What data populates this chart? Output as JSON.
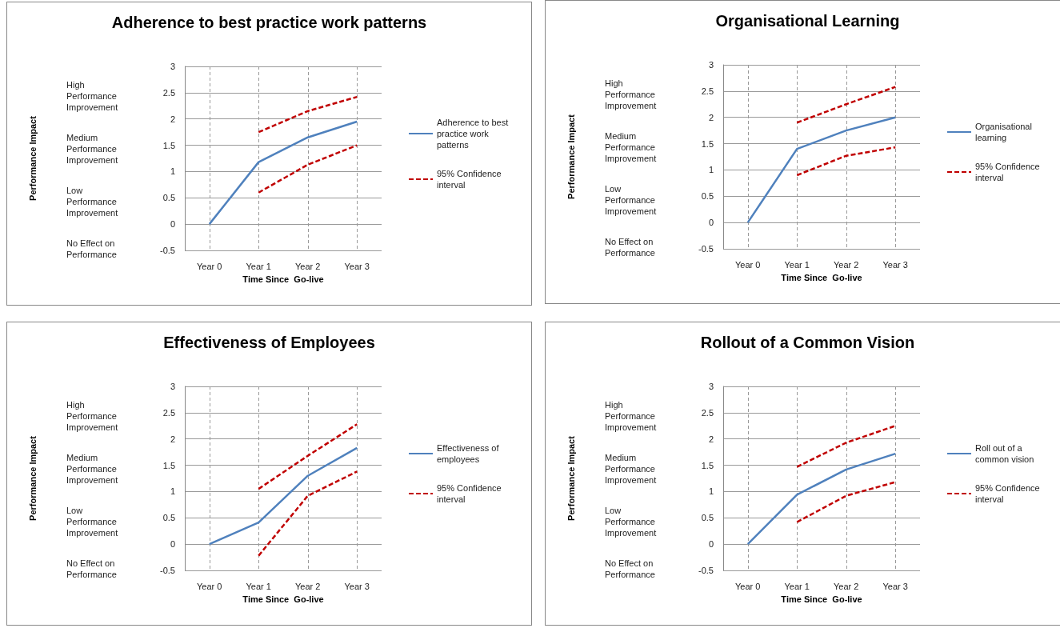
{
  "chart_data": [
    {
      "type": "line",
      "title": "Adherence to best practice work patterns",
      "xlabel": "Time Since  Go-live",
      "ylabel": "Performance Impact",
      "categories": [
        "Year 0",
        "Year 1",
        "Year 2",
        "Year 3"
      ],
      "series": [
        {
          "name": "Adherence to best practice work patterns",
          "color": "#4f81bd",
          "line_style": "solid",
          "values": [
            0,
            1.18,
            1.65,
            1.95
          ]
        },
        {
          "name": "95% Confidence interval",
          "color": "#c00000",
          "line_style": "dashed",
          "values": [
            null,
            1.75,
            2.15,
            2.42
          ]
        },
        {
          "color": "#c00000",
          "line_style": "dashed",
          "values": [
            null,
            0.6,
            1.13,
            1.5
          ]
        }
      ],
      "ylim": [
        -0.5,
        3
      ],
      "yticks": [
        -0.5,
        0,
        0.5,
        1,
        1.5,
        2,
        2.5,
        3
      ],
      "grid": true,
      "legend": "right",
      "marker": "none",
      "annotations": [
        "High Performance Improvement",
        "Medium Performance Improvement",
        "Low Performance Improvement",
        "No Effect on Performance"
      ]
    },
    {
      "type": "line",
      "title": "Organisational Learning",
      "xlabel": "Time Since  Go-live",
      "ylabel": "Performance Impact",
      "categories": [
        "Year 0",
        "Year 1",
        "Year 2",
        "Year 3"
      ],
      "series": [
        {
          "name": "Organisational learning",
          "color": "#4f81bd",
          "line_style": "solid",
          "values": [
            0,
            1.4,
            1.75,
            2.0
          ]
        },
        {
          "name": "95% Confidence interval",
          "color": "#c00000",
          "line_style": "dashed",
          "values": [
            null,
            1.9,
            2.25,
            2.58
          ]
        },
        {
          "color": "#c00000",
          "line_style": "dashed",
          "values": [
            null,
            0.9,
            1.27,
            1.43
          ]
        }
      ],
      "ylim": [
        -0.5,
        3
      ],
      "yticks": [
        -0.5,
        0,
        0.5,
        1,
        1.5,
        2,
        2.5,
        3
      ],
      "grid": true,
      "legend": "right",
      "marker": "none",
      "annotations": [
        "High Performance Improvement",
        "Medium Performance Improvement",
        "Low Performance Improvement",
        "No Effect on Performance"
      ]
    },
    {
      "type": "line",
      "title": "Effectiveness of Employees",
      "xlabel": "Time Since  Go-live",
      "ylabel": "Performance Impact",
      "categories": [
        "Year 0",
        "Year 1",
        "Year 2",
        "Year 3"
      ],
      "series": [
        {
          "name": "Effectiveness of employees",
          "color": "#4f81bd",
          "line_style": "solid",
          "values": [
            0,
            0.41,
            1.3,
            1.83
          ]
        },
        {
          "name": "95% Confidence interval",
          "color": "#c00000",
          "line_style": "dashed",
          "values": [
            null,
            1.05,
            1.68,
            2.28
          ]
        },
        {
          "color": "#c00000",
          "line_style": "dashed",
          "values": [
            null,
            -0.22,
            0.92,
            1.38
          ]
        }
      ],
      "ylim": [
        -0.5,
        3
      ],
      "yticks": [
        -0.5,
        0,
        0.5,
        1,
        1.5,
        2,
        2.5,
        3
      ],
      "grid": true,
      "legend": "right",
      "marker": "none",
      "annotations": [
        "High Performance Improvement",
        "Medium Performance Improvement",
        "Low Performance Improvement",
        "No Effect on Performance"
      ]
    },
    {
      "type": "line",
      "title": "Rollout of a Common Vision",
      "xlabel": "Time Since  Go-live",
      "ylabel": "Performance Impact",
      "categories": [
        "Year 0",
        "Year 1",
        "Year 2",
        "Year 3"
      ],
      "series": [
        {
          "name": "Roll out of a common vision",
          "color": "#4f81bd",
          "line_style": "solid",
          "values": [
            0,
            0.94,
            1.42,
            1.72
          ]
        },
        {
          "name": "95% Confidence interval",
          "color": "#c00000",
          "line_style": "dashed",
          "values": [
            null,
            1.47,
            1.93,
            2.25
          ]
        },
        {
          "color": "#c00000",
          "line_style": "dashed",
          "values": [
            null,
            0.42,
            0.92,
            1.18
          ]
        }
      ],
      "ylim": [
        -0.5,
        3
      ],
      "yticks": [
        -0.5,
        0,
        0.5,
        1,
        1.5,
        2,
        2.5,
        3
      ],
      "grid": true,
      "legend": "right",
      "marker": "none",
      "annotations": [
        "High Performance Improvement",
        "Medium Performance Improvement",
        "Low Performance Improvement",
        "No Effect on Performance"
      ]
    }
  ]
}
